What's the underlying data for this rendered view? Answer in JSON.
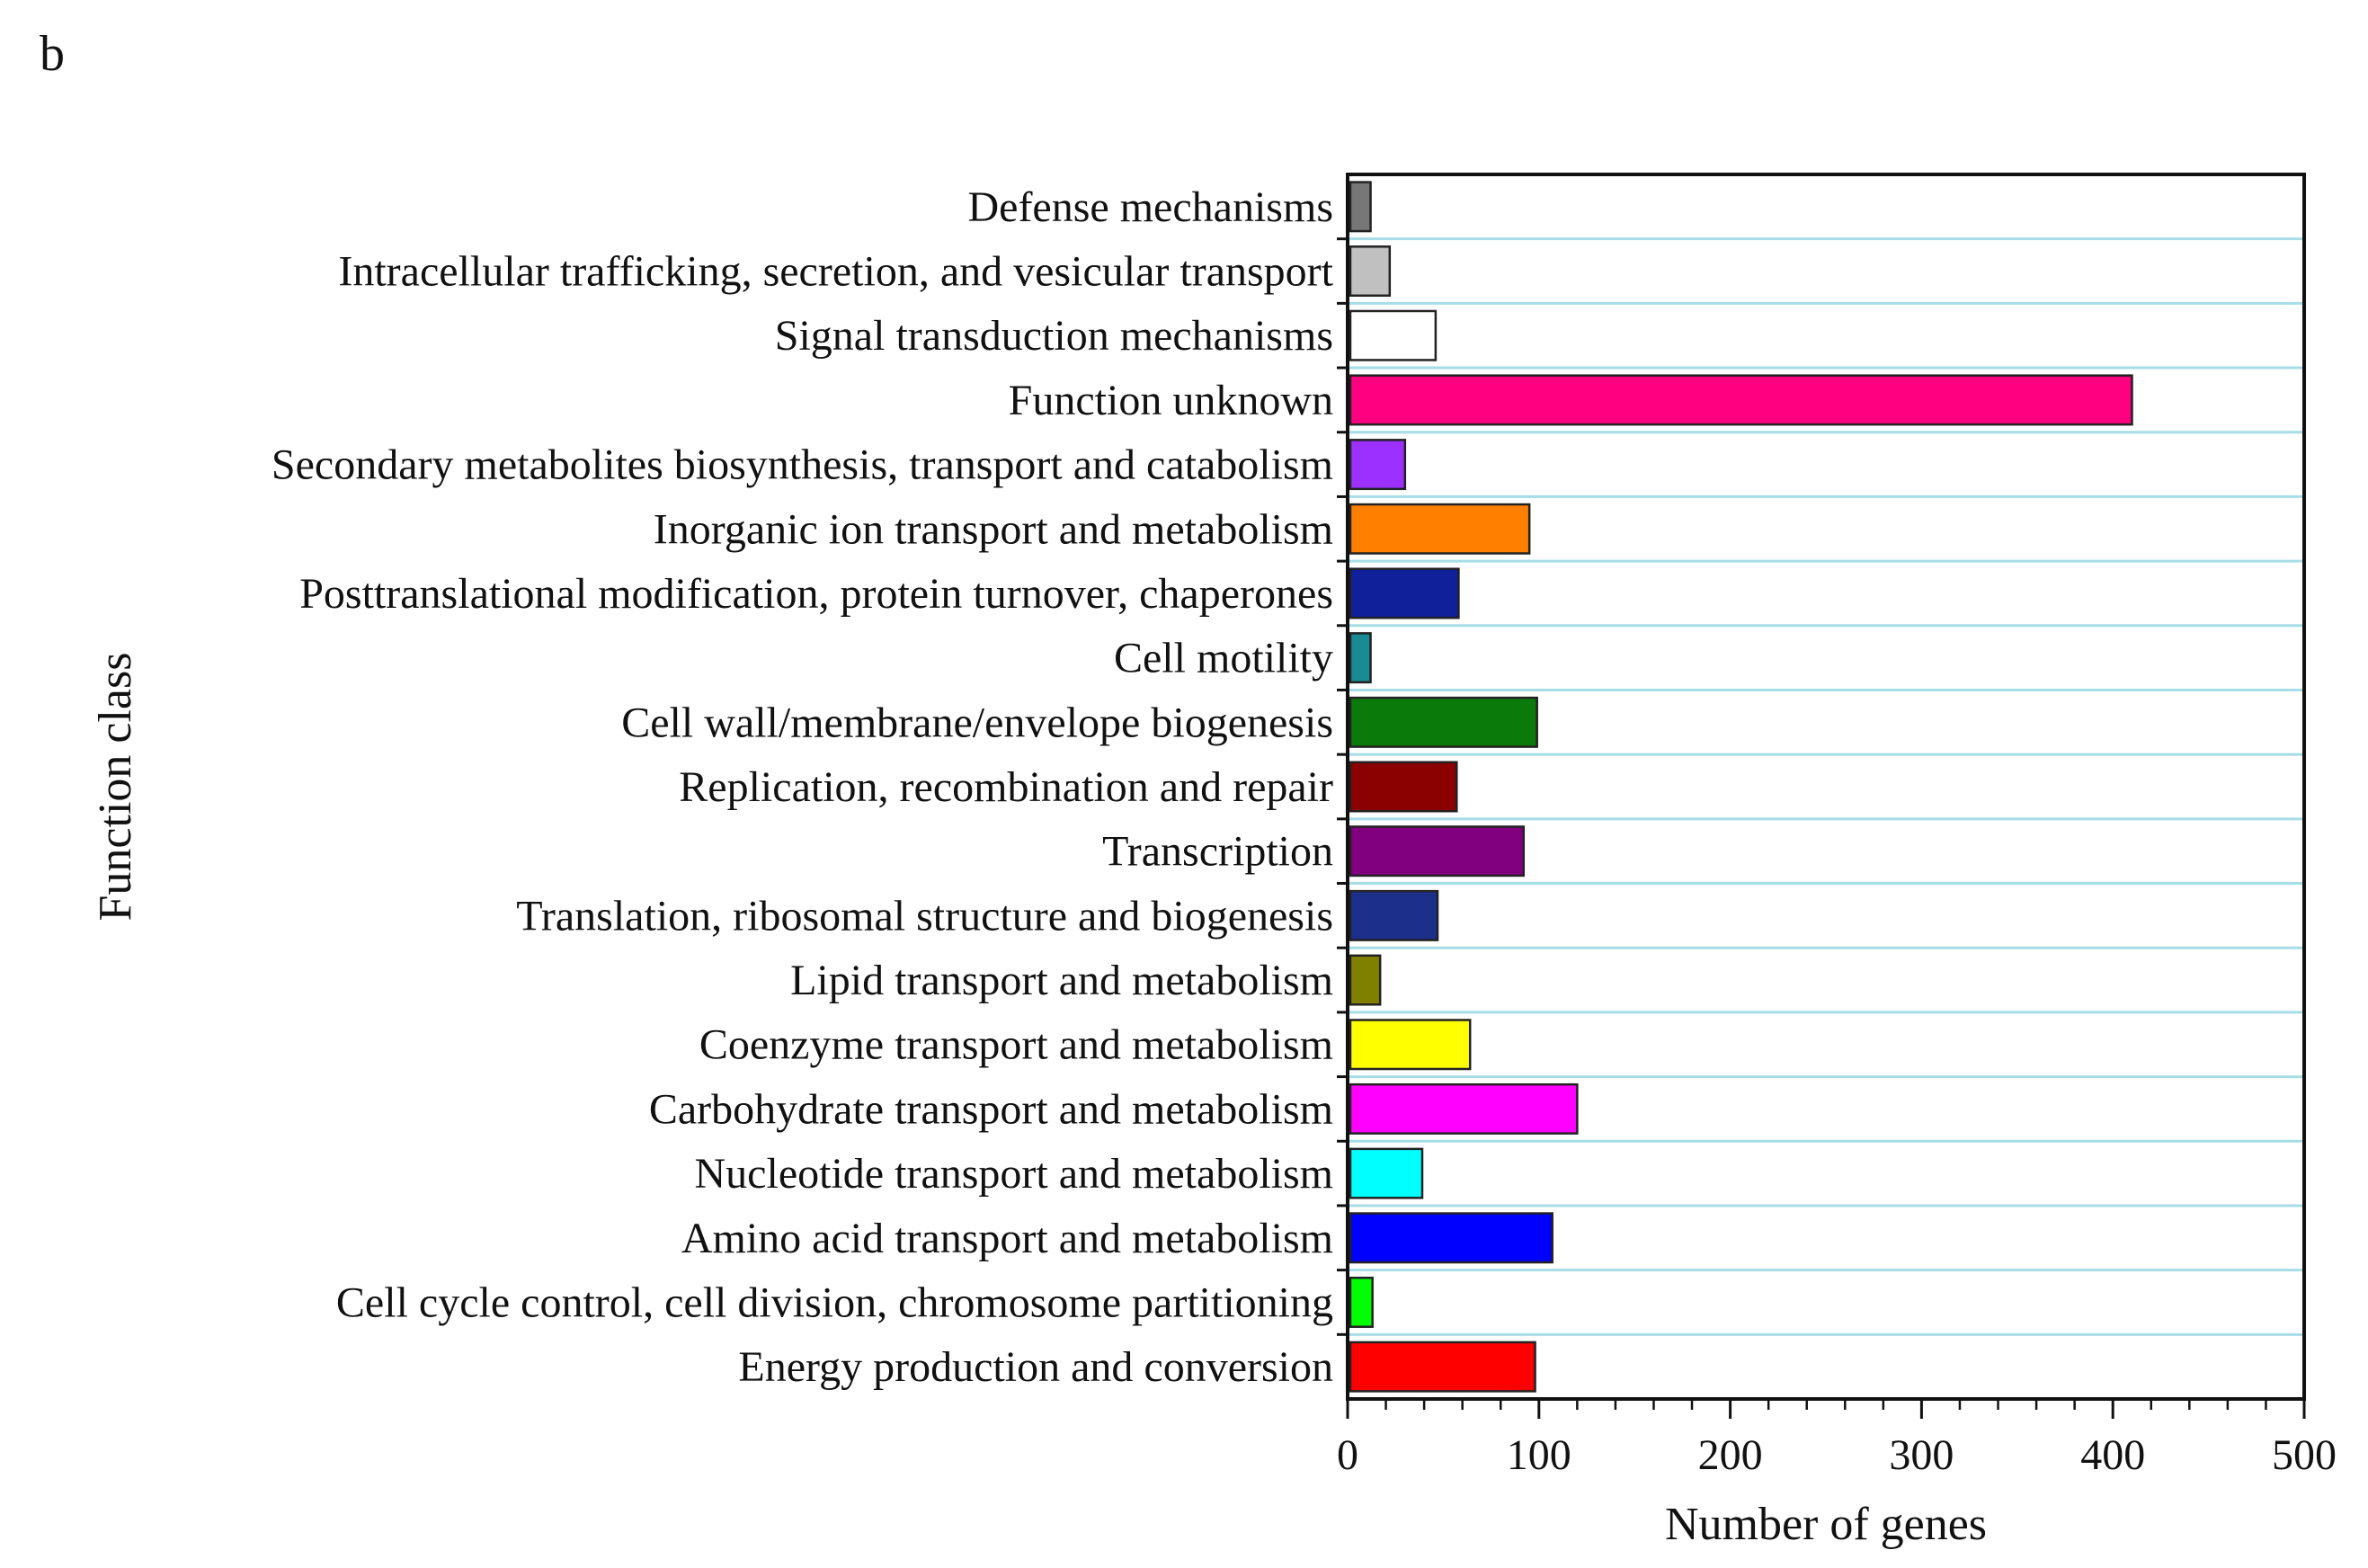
{
  "panel_label": "b",
  "chart_data": {
    "type": "bar",
    "orientation": "horizontal",
    "title": "",
    "xlabel": "Number of genes",
    "ylabel": "Function class",
    "xlim": [
      0,
      500
    ],
    "xticks": [
      "0",
      "100",
      "200",
      "300",
      "400",
      "500"
    ],
    "grid": "horizontal",
    "categories": [
      "Defense mechanisms",
      "Intracellular trafficking, secretion, and vesicular transport",
      "Signal transduction mechanisms",
      "Function unknown",
      "Secondary metabolites biosynthesis, transport and catabolism",
      "Inorganic ion transport and metabolism",
      "Posttranslational modification, protein turnover, chaperones",
      "Cell motility",
      "Cell wall/membrane/envelope biogenesis",
      "Replication, recombination and repair",
      "Transcription",
      "Translation, ribosomal structure and biogenesis",
      "Lipid transport and metabolism",
      "Coenzyme transport and metabolism",
      "Carbohydrate transport and metabolism",
      "Nucleotide transport and metabolism",
      "Amino acid transport and metabolism",
      "Cell cycle control, cell division, chromosome partitioning",
      "Energy production and conversion"
    ],
    "values": [
      12,
      22,
      46,
      410,
      30,
      95,
      58,
      12,
      99,
      57,
      92,
      47,
      17,
      64,
      120,
      39,
      107,
      13,
      98
    ],
    "colors": [
      "#777777",
      "#c0c0c0",
      "#ffffff",
      "#ff0080",
      "#9b30ff",
      "#ff8000",
      "#10209a",
      "#1a8a94",
      "#0a7a0a",
      "#8b0000",
      "#800080",
      "#1c2f8a",
      "#808000",
      "#ffff00",
      "#ff00ff",
      "#00ffff",
      "#0000ff",
      "#00ff00",
      "#ff0000"
    ]
  }
}
